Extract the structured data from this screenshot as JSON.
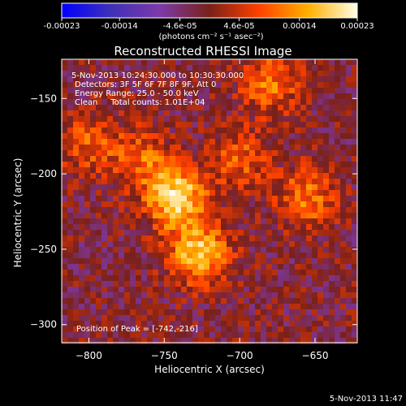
{
  "chart_data": {
    "type": "heatmap",
    "title": "Reconstructed RHESSI Image",
    "xlabel": "Heliocentric X (arcsec)",
    "ylabel": "Heliocentric Y (arcsec)",
    "xlim": [
      -818,
      -622
    ],
    "ylim": [
      -312,
      -124
    ],
    "x_ticks": [
      -800,
      -750,
      -700,
      -650
    ],
    "y_ticks": [
      -150,
      -200,
      -250,
      -300
    ],
    "colorbar": {
      "ticks": [
        "-0.00023",
        "-0.00014",
        "-4.6e-05",
        "4.6e-05",
        "0.00014",
        "0.00023"
      ],
      "tick_values": [
        -0.00023,
        -0.00014,
        -4.6e-05,
        4.6e-05,
        0.00014,
        0.00023
      ],
      "range": [
        -0.00023,
        0.00023
      ],
      "units": "(photons cm⁻² s⁻¹ asec⁻²)",
      "stops": [
        "#0000ff",
        "#4030b8",
        "#7d3aa8",
        "#7a2018",
        "#ff4000",
        "#ffb000",
        "#ffffe8"
      ]
    },
    "annotations": {
      "time": "5-Nov-2013 10:24:30.000 to 10:30:30.000",
      "detectors": "Detectors: 3F 5F 6F 7F 8F 9F, Att 0",
      "energy": "Energy Range: 25.0 - 50.0 keV",
      "clean": "Clean     Total counts: 1.01E+04",
      "peak": "Position of Peak = [-742,-216]"
    },
    "peak_position": [
      -742,
      -216
    ],
    "sources": [
      {
        "x": -742,
        "y": -216,
        "amplitude": 1.0
      },
      {
        "x": -727,
        "y": -253,
        "amplitude": 0.85
      },
      {
        "x": -680,
        "y": -140,
        "amplitude": 0.55
      },
      {
        "x": -655,
        "y": -215,
        "amplitude": 0.55
      },
      {
        "x": -765,
        "y": -190,
        "amplitude": 0.45
      },
      {
        "x": -700,
        "y": -190,
        "amplitude": 0.45
      },
      {
        "x": -800,
        "y": -180,
        "amplitude": 0.45
      }
    ]
  },
  "footer": {
    "timestamp": "5-Nov-2013 11:47"
  }
}
